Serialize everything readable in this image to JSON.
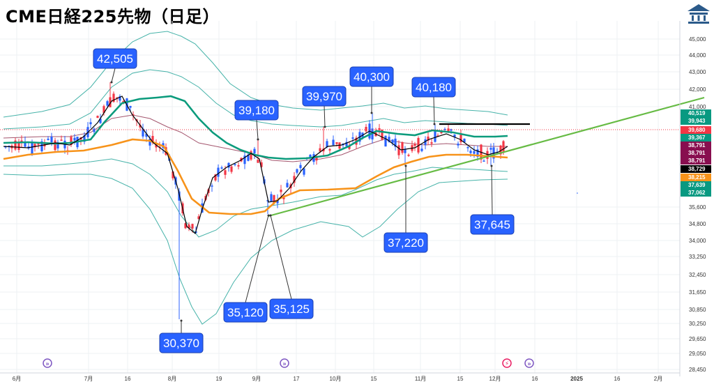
{
  "title": "CME日経225先物（日足）",
  "logo_icon": "bank-building-icon",
  "chart_data": {
    "type": "candlestick",
    "title": "CME日経225先物（日足）",
    "y_ticks": [
      "45,000",
      "44,000",
      "43,000",
      "42,000",
      "41,000",
      "35,600",
      "34,800",
      "34,000",
      "33,250",
      "32,450",
      "31,650",
      "30,850",
      "30,250",
      "29,650",
      "29,050",
      "28,450"
    ],
    "x_ticks": [
      "6月",
      "7月",
      "16",
      "8月",
      "19",
      "9月",
      "17",
      "10月",
      "15",
      "11月",
      "15",
      "12月",
      "16",
      "2025",
      "16",
      "2月"
    ],
    "price_tags": [
      {
        "value": "40,519",
        "color": "#089981"
      },
      {
        "value": "39,943",
        "color": "#089981"
      },
      {
        "value": "39,680",
        "color": "#f23645"
      },
      {
        "value": "39,367",
        "color": "#089981"
      },
      {
        "value": "38,791",
        "color": "#880e4f"
      },
      {
        "value": "38,791",
        "color": "#880e4f"
      },
      {
        "value": "38,791",
        "color": "#880e4f"
      },
      {
        "value": "38,729",
        "color": "#000000"
      },
      {
        "value": "38,215",
        "color": "#f7931a"
      },
      {
        "value": "37,639",
        "color": "#089981"
      },
      {
        "value": "37,062",
        "color": "#089981"
      }
    ],
    "callouts": [
      "42,505",
      "39,180",
      "39,970",
      "40,300",
      "40,180",
      "30,370",
      "35,120",
      "35,125",
      "37,220",
      "37,645"
    ],
    "event_icons": [
      "forward-icon",
      "forward-icon",
      "flash-icon",
      "forward-icon"
    ],
    "colors": {
      "up": "#f23645",
      "down": "#2962ff",
      "ma_short": "#000000",
      "ma_mid": "#0b9b7c",
      "ma_long": "#f7931a",
      "trend": "#66bb44",
      "band": "#26a69a",
      "callout": "#2962ff"
    }
  }
}
